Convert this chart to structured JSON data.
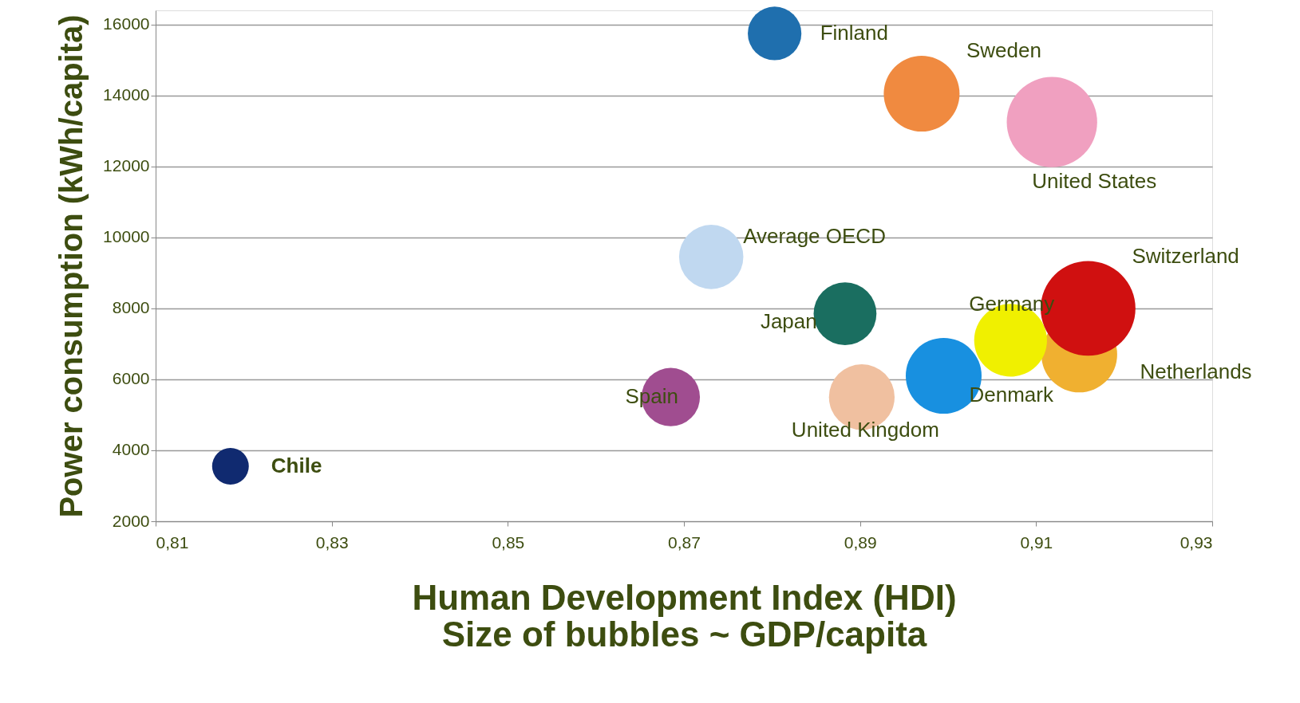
{
  "chart_data": {
    "type": "bubble",
    "xlabel": "Human Development Index (HDI)\nSize of bubbles ~ GDP/capita",
    "ylabel": "Power consumption (kWh/capita)",
    "xlim": [
      0.81,
      0.93
    ],
    "xticks": [
      {
        "value": 0.81,
        "label": "0,81"
      },
      {
        "value": 0.83,
        "label": "0,83"
      },
      {
        "value": 0.85,
        "label": "0,85"
      },
      {
        "value": 0.87,
        "label": "0,87"
      },
      {
        "value": 0.89,
        "label": "0,89"
      },
      {
        "value": 0.91,
        "label": "0,91"
      },
      {
        "value": 0.93,
        "label": "0,93"
      }
    ],
    "ylim": [
      2000,
      16400
    ],
    "yticks": [
      2000,
      4000,
      6000,
      8000,
      10000,
      12000,
      14000,
      16000
    ],
    "grid": "y",
    "series": [
      {
        "name": "Finland",
        "color": "#1f6fae",
        "x": [
          0.8803
        ],
        "values": [
          15750
        ],
        "sizes": [
          0.32
        ]
      },
      {
        "name": "Sweden",
        "color": "#f08a40",
        "x": [
          0.897
        ],
        "values": [
          14050
        ],
        "sizes": [
          0.64
        ]
      },
      {
        "name": "United States",
        "color": "#f0a0c0",
        "x": [
          0.9118
        ],
        "values": [
          13250
        ],
        "sizes": [
          0.91
        ]
      },
      {
        "name": "Average OECD",
        "color": "#c0d8f0",
        "x": [
          0.8731
        ],
        "values": [
          9450
        ],
        "sizes": [
          0.46
        ]
      },
      {
        "name": "Japan",
        "color": "#1a6e60",
        "x": [
          0.8883
        ],
        "values": [
          7850
        ],
        "sizes": [
          0.44
        ]
      },
      {
        "name": "Netherlands",
        "color": "#f0b030",
        "x": [
          0.9149
        ],
        "values": [
          6700
        ],
        "sizes": [
          0.64
        ]
      },
      {
        "name": "Germany",
        "color": "#f0f000",
        "x": [
          0.9071
        ],
        "values": [
          7100
        ],
        "sizes": [
          0.59
        ]
      },
      {
        "name": "Switzerland",
        "color": "#d01010",
        "x": [
          0.9159
        ],
        "values": [
          8000
        ],
        "sizes": [
          1
        ]
      },
      {
        "name": "Denmark",
        "color": "#1890e0",
        "x": [
          0.8995
        ],
        "values": [
          6100
        ],
        "sizes": [
          0.64
        ]
      },
      {
        "name": "United Kingdom",
        "color": "#f0c0a0",
        "x": [
          0.8902
        ],
        "values": [
          5500
        ],
        "sizes": [
          0.48
        ]
      },
      {
        "name": "Spain",
        "color": "#a04d90",
        "x": [
          0.8685
        ],
        "values": [
          5500
        ],
        "sizes": [
          0.38
        ]
      },
      {
        "name": "Chile",
        "color": "#102a70",
        "x": [
          0.8185
        ],
        "values": [
          3550
        ],
        "sizes": [
          0.15
        ]
      }
    ]
  }
}
